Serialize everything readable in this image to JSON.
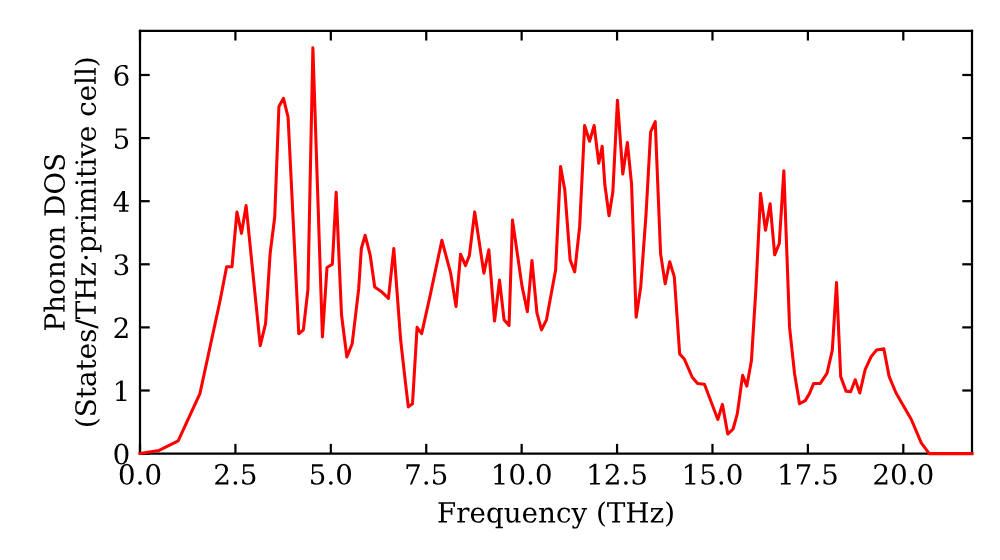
{
  "chart_data": {
    "type": "line",
    "xlabel": "Frequency (THz)",
    "ylabel": "Phonon DOS\n(States/THz·primitive cell)",
    "x": [
      0,
      0.5,
      1.0,
      1.57,
      2.1,
      2.27,
      2.41,
      2.54,
      2.66,
      2.78,
      3.15,
      3.29,
      3.41,
      3.53,
      3.64,
      3.76,
      3.88,
      4.16,
      4.28,
      4.4,
      4.53,
      4.78,
      4.9,
      5.04,
      5.14,
      5.28,
      5.42,
      5.56,
      5.73,
      5.8,
      5.9,
      6.03,
      6.15,
      6.32,
      6.51,
      6.65,
      6.83,
      6.96,
      7.03,
      7.14,
      7.26,
      7.38,
      7.6,
      7.91,
      8.14,
      8.28,
      8.4,
      8.53,
      8.63,
      8.77,
      9.01,
      9.14,
      9.29,
      9.42,
      9.54,
      9.67,
      9.76,
      10.01,
      10.15,
      10.27,
      10.4,
      10.52,
      10.65,
      10.89,
      11.02,
      11.13,
      11.27,
      11.39,
      11.52,
      11.65,
      11.78,
      11.9,
      12.02,
      12.11,
      12.18,
      12.29,
      12.39,
      12.51,
      12.65,
      12.77,
      12.88,
      13.0,
      13.12,
      13.26,
      13.38,
      13.5,
      13.64,
      13.76,
      13.88,
      14.0,
      14.14,
      14.26,
      14.47,
      14.61,
      14.79,
      15.14,
      15.26,
      15.4,
      15.54,
      15.65,
      15.79,
      15.9,
      16.02,
      16.14,
      16.26,
      16.39,
      16.51,
      16.63,
      16.75,
      16.87,
      17.02,
      17.15,
      17.28,
      17.43,
      17.54,
      17.65,
      17.82,
      18.0,
      18.14,
      18.25,
      18.36,
      18.5,
      18.62,
      18.74,
      18.86,
      19.0,
      19.16,
      19.3,
      19.49,
      19.63,
      19.81,
      20.21,
      20.47,
      20.68,
      21.8
    ],
    "series": [
      {
        "color": "#ff0000",
        "values": [
          0,
          0.05,
          0.2,
          0.95,
          2.43,
          2.96,
          2.96,
          3.83,
          3.49,
          3.93,
          1.71,
          2.06,
          3.17,
          3.75,
          5.5,
          5.63,
          5.33,
          1.9,
          1.96,
          2.6,
          6.43,
          1.85,
          2.95,
          3.0,
          4.14,
          2.2,
          1.53,
          1.74,
          2.61,
          3.25,
          3.46,
          3.15,
          2.64,
          2.57,
          2.46,
          3.25,
          1.8,
          1.1,
          0.74,
          0.79,
          2.0,
          1.9,
          2.5,
          3.38,
          2.86,
          2.33,
          3.16,
          2.98,
          3.14,
          3.83,
          2.86,
          3.23,
          2.1,
          2.75,
          2.12,
          2.03,
          3.7,
          2.65,
          2.25,
          3.06,
          2.23,
          1.96,
          2.12,
          2.91,
          4.55,
          4.18,
          3.07,
          2.88,
          3.6,
          5.2,
          4.95,
          5.2,
          4.6,
          4.87,
          4.26,
          3.77,
          4.15,
          5.6,
          4.43,
          4.93,
          4.27,
          2.16,
          2.64,
          3.8,
          5.1,
          5.26,
          3.17,
          2.69,
          3.04,
          2.8,
          1.58,
          1.5,
          1.21,
          1.11,
          1.1,
          0.54,
          0.78,
          0.31,
          0.39,
          0.63,
          1.24,
          1.07,
          1.47,
          2.63,
          4.12,
          3.54,
          3.96,
          3.15,
          3.33,
          4.48,
          2.0,
          1.27,
          0.79,
          0.84,
          0.95,
          1.11,
          1.11,
          1.27,
          1.64,
          2.71,
          1.22,
          0.99,
          0.98,
          1.17,
          0.96,
          1.33,
          1.54,
          1.64,
          1.66,
          1.22,
          0.96,
          0.54,
          0.17,
          0,
          0
        ]
      }
    ],
    "xlim": [
      0,
      21.8
    ],
    "ylim": [
      0,
      6.7
    ],
    "xticks": [
      {
        "value": 0,
        "label": "0.0"
      },
      {
        "value": 2.5,
        "label": "2.5"
      },
      {
        "value": 5,
        "label": "5.0"
      },
      {
        "value": 7.5,
        "label": "7.5"
      },
      {
        "value": 10,
        "label": "10.0"
      },
      {
        "value": 12.5,
        "label": "12.5"
      },
      {
        "value": 15,
        "label": "15.0"
      },
      {
        "value": 17.5,
        "label": "17.5"
      },
      {
        "value": 20,
        "label": "20.0"
      }
    ],
    "yticks": [
      0,
      1,
      2,
      3,
      4,
      5,
      6
    ],
    "grid": false,
    "legend": false,
    "marker": "none",
    "line_style": "solid"
  }
}
